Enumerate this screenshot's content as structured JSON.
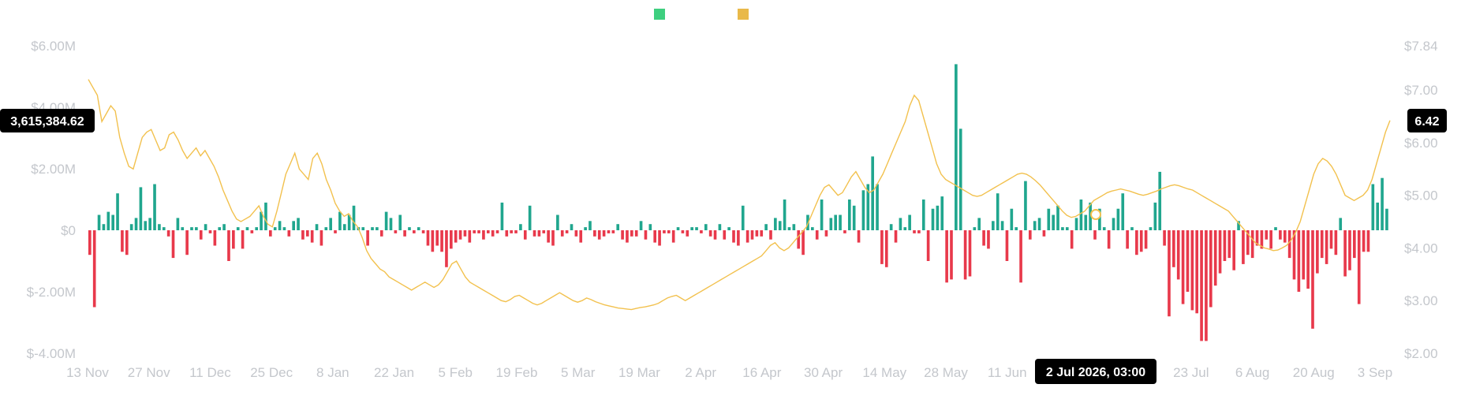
{
  "chart_data": {
    "type": "bar+line",
    "colors": {
      "positive": "#20a68e",
      "negative": "#e8394b",
      "line": "#f2c14e",
      "legend_inflow": "#3ecf7f",
      "legend_price": "#e9b949",
      "axis_text": "#c4c7cc",
      "badge_bg": "#000000"
    },
    "legend": [
      {
        "color": "#3ecf7f"
      },
      {
        "color": "#e9b949"
      }
    ],
    "x_ticks": [
      "13 Nov",
      "27 Nov",
      "11 Dec",
      "25 Dec",
      "8 Jan",
      "22 Jan",
      "5 Feb",
      "19 Feb",
      "5 Mar",
      "19 Mar",
      "2 Apr",
      "16 Apr",
      "30 Apr",
      "14 May",
      "28 May",
      "11 Jun",
      "25 Jun",
      "9 Jul",
      "23 Jul",
      "6 Aug",
      "20 Aug",
      "3 Sep"
    ],
    "y_left": {
      "ticks": [
        "$6.00M",
        "$4.00M",
        "$2.00M",
        "$0",
        "$-2.00M",
        "$-4.00M"
      ],
      "range": [
        -4000000,
        6000000
      ]
    },
    "y_right": {
      "ticks": [
        "$7.84",
        "$7.00",
        "$6.00",
        "$5.00",
        "$4.00",
        "$3.00",
        "$2.00"
      ],
      "range": [
        2.0,
        7.84
      ]
    },
    "crosshair": {
      "x_label": "2 Jul 2026, 03:00",
      "left_value": "3,615,384.62",
      "right_value": "6.42"
    },
    "flows": [
      -0.8,
      -2.5,
      0.5,
      0.2,
      0.6,
      0.5,
      1.2,
      -0.7,
      -0.8,
      0.2,
      0.4,
      1.4,
      0.3,
      0.4,
      1.5,
      0.2,
      0.1,
      -0.2,
      -0.9,
      0.4,
      0.1,
      -0.8,
      0.1,
      0.1,
      -0.3,
      0.2,
      -0.1,
      -0.5,
      0.1,
      0.2,
      -1.0,
      -0.6,
      0.1,
      -0.6,
      0.1,
      -0.1,
      0.1,
      0.6,
      0.9,
      -0.2,
      0.1,
      0.3,
      0.1,
      -0.2,
      0.3,
      0.4,
      -0.3,
      -0.2,
      -0.4,
      0.2,
      -0.5,
      0.1,
      0.4,
      -0.1,
      0.6,
      0.2,
      0.5,
      0.8,
      0.1,
      0.1,
      -0.5,
      0.1,
      0.1,
      -0.2,
      0.6,
      0.4,
      -0.1,
      0.5,
      -0.2,
      0.1,
      -0.1,
      0.1,
      -0.1,
      -0.5,
      -0.7,
      -0.5,
      -0.7,
      -1.2,
      -0.6,
      -0.4,
      -0.3,
      -0.2,
      -0.4,
      -0.1,
      -0.1,
      -0.3,
      -0.1,
      -0.2,
      -0.1,
      0.9,
      -0.2,
      -0.1,
      -0.1,
      0.2,
      -0.3,
      0.8,
      -0.2,
      -0.2,
      -0.1,
      -0.4,
      -0.5,
      0.5,
      -0.2,
      -0.1,
      0.2,
      -0.2,
      -0.4,
      0.1,
      0.3,
      -0.2,
      -0.3,
      -0.2,
      -0.1,
      -0.1,
      0.2,
      -0.3,
      -0.4,
      -0.2,
      -0.2,
      0.3,
      -0.3,
      0.2,
      -0.4,
      -0.5,
      -0.1,
      -0.1,
      -0.4,
      0.1,
      -0.1,
      -0.2,
      0.1,
      0.1,
      -0.1,
      0.2,
      -0.2,
      -0.3,
      0.2,
      -0.3,
      0.1,
      -0.4,
      -0.5,
      0.8,
      -0.4,
      -0.3,
      -0.2,
      -0.2,
      0.2,
      -0.3,
      0.4,
      0.3,
      1.0,
      0.1,
      0.2,
      -0.6,
      -0.8,
      0.5,
      0.1,
      -0.3,
      1.0,
      -0.2,
      0.4,
      0.5,
      0.5,
      -0.1,
      1.0,
      0.8,
      -0.4,
      1.3,
      1.5,
      2.4,
      1.5,
      -1.1,
      -1.2,
      0.2,
      -0.4,
      0.4,
      0.1,
      0.5,
      -0.1,
      -0.1,
      1.0,
      -1.0,
      0.7,
      0.8,
      1.1,
      -1.7,
      -1.6,
      5.4,
      3.3,
      -1.6,
      -1.5,
      0.1,
      0.4,
      -0.5,
      -0.6,
      0.3,
      1.2,
      0.3,
      -1.0,
      0.7,
      0.1,
      -1.7,
      1.6,
      -0.3,
      0.3,
      0.4,
      -0.2,
      0.7,
      0.5,
      0.8,
      0.1,
      0.1,
      -0.6,
      0.4,
      1.0,
      0.5,
      0.9,
      -0.3,
      0.7,
      0.1,
      -0.6,
      0.4,
      0.7,
      1.2,
      -0.6,
      0.1,
      -0.8,
      -0.7,
      -0.6,
      0.1,
      0.9,
      1.9,
      -0.5,
      -2.8,
      -1.2,
      -1.6,
      -2.4,
      -2.0,
      -2.6,
      -2.7,
      -3.6,
      -3.6,
      -2.5,
      -1.8,
      -1.4,
      -1.0,
      -0.9,
      -1.3,
      0.3,
      -1.1,
      -0.8,
      -0.9,
      -0.5,
      -0.6,
      -0.3,
      -0.6,
      0.1,
      -0.3,
      -0.4,
      -0.9,
      -1.6,
      -2.0,
      -1.6,
      -1.9,
      -3.2,
      -1.4,
      -0.9,
      -1.1,
      -0.6,
      -0.8,
      0.4,
      -1.5,
      -1.3,
      -0.9,
      -2.4,
      -0.7,
      -0.7,
      1.5,
      0.9,
      1.7,
      0.7
    ],
    "prices": [
      7.2,
      7.05,
      6.9,
      6.4,
      6.55,
      6.7,
      6.6,
      6.1,
      5.8,
      5.55,
      5.5,
      5.8,
      6.1,
      6.2,
      6.25,
      6.05,
      5.85,
      5.9,
      6.15,
      6.2,
      6.05,
      5.85,
      5.7,
      5.8,
      5.9,
      5.75,
      5.85,
      5.7,
      5.55,
      5.35,
      5.1,
      4.9,
      4.7,
      4.55,
      4.5,
      4.55,
      4.6,
      4.7,
      4.8,
      4.6,
      4.45,
      4.4,
      4.7,
      5.05,
      5.4,
      5.6,
      5.8,
      5.5,
      5.4,
      5.3,
      5.7,
      5.8,
      5.6,
      5.3,
      5.1,
      4.85,
      4.7,
      4.6,
      4.65,
      4.5,
      4.4,
      4.2,
      3.95,
      3.8,
      3.7,
      3.6,
      3.55,
      3.45,
      3.4,
      3.35,
      3.3,
      3.25,
      3.2,
      3.25,
      3.3,
      3.35,
      3.3,
      3.25,
      3.3,
      3.4,
      3.55,
      3.7,
      3.75,
      3.6,
      3.45,
      3.35,
      3.3,
      3.25,
      3.2,
      3.15,
      3.1,
      3.05,
      3.0,
      2.98,
      3.02,
      3.08,
      3.1,
      3.05,
      3.0,
      2.95,
      2.92,
      2.95,
      3.0,
      3.05,
      3.1,
      3.15,
      3.1,
      3.05,
      3.0,
      2.97,
      3.0,
      3.05,
      3.02,
      2.98,
      2.95,
      2.92,
      2.9,
      2.88,
      2.86,
      2.85,
      2.84,
      2.83,
      2.85,
      2.87,
      2.88,
      2.9,
      2.92,
      2.95,
      3.0,
      3.05,
      3.08,
      3.1,
      3.05,
      3.0,
      3.05,
      3.1,
      3.15,
      3.2,
      3.25,
      3.3,
      3.35,
      3.4,
      3.45,
      3.5,
      3.55,
      3.6,
      3.65,
      3.7,
      3.75,
      3.8,
      3.85,
      3.95,
      4.05,
      4.1,
      4.0,
      3.95,
      4.0,
      4.1,
      4.2,
      4.3,
      4.4,
      4.6,
      4.8,
      5.0,
      5.15,
      5.2,
      5.1,
      5.0,
      5.05,
      5.2,
      5.35,
      5.45,
      5.3,
      5.15,
      5.05,
      5.1,
      5.25,
      5.4,
      5.6,
      5.8,
      6.0,
      6.2,
      6.4,
      6.7,
      6.9,
      6.8,
      6.5,
      6.2,
      5.9,
      5.6,
      5.4,
      5.3,
      5.25,
      5.2,
      5.15,
      5.1,
      5.05,
      5.0,
      4.98,
      5.0,
      5.05,
      5.1,
      5.15,
      5.2,
      5.25,
      5.3,
      5.35,
      5.4,
      5.42,
      5.4,
      5.35,
      5.28,
      5.2,
      5.1,
      5.0,
      4.9,
      4.8,
      4.7,
      4.62,
      4.58,
      4.6,
      4.65,
      4.7,
      4.8,
      4.9,
      4.95,
      5.0,
      5.05,
      5.08,
      5.1,
      5.12,
      5.1,
      5.08,
      5.05,
      5.02,
      5.0,
      5.02,
      5.05,
      5.08,
      5.12,
      5.15,
      5.18,
      5.2,
      5.18,
      5.15,
      5.12,
      5.1,
      5.05,
      5.0,
      4.95,
      4.9,
      4.85,
      4.8,
      4.75,
      4.7,
      4.6,
      4.5,
      4.4,
      4.3,
      4.2,
      4.1,
      4.05,
      4.0,
      3.98,
      3.95,
      3.96,
      4.0,
      4.05,
      4.15,
      4.3,
      4.5,
      4.8,
      5.1,
      5.4,
      5.6,
      5.7,
      5.65,
      5.55,
      5.4,
      5.2,
      5.0,
      4.95,
      4.9,
      4.95,
      5.0,
      5.1,
      5.3,
      5.6,
      5.9,
      6.2,
      6.42
    ]
  }
}
